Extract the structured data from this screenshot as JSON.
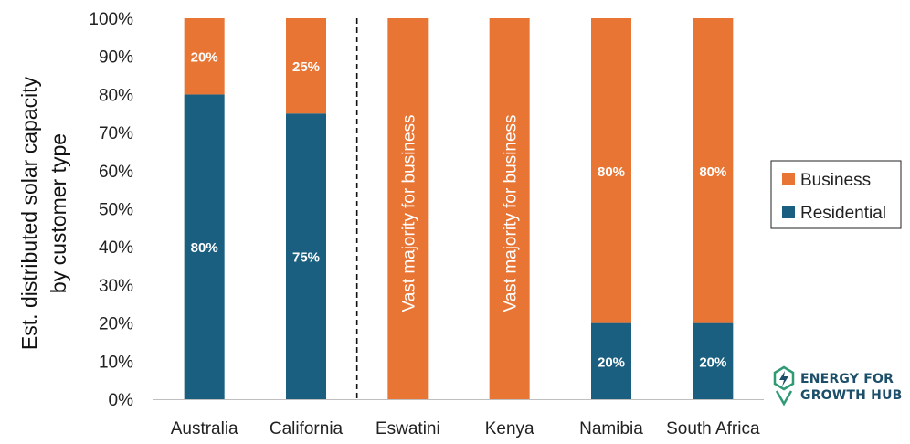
{
  "chart_data": {
    "type": "bar",
    "stacked": true,
    "ylabel_lines": [
      "Est. distributed solar capacity",
      "by customer type"
    ],
    "ylim": [
      0,
      100
    ],
    "yticks": [
      "0%",
      "10%",
      "20%",
      "30%",
      "40%",
      "50%",
      "60%",
      "70%",
      "80%",
      "90%",
      "100%"
    ],
    "categories": [
      "Australia",
      "California",
      "Eswatini",
      "Kenya",
      "Namibia",
      "South Africa"
    ],
    "series": [
      {
        "name": "Residential",
        "color": "#1a5f80",
        "values": [
          80,
          75,
          0,
          0,
          20,
          20
        ],
        "labels": [
          "80%",
          "75%",
          "",
          "",
          "20%",
          "20%"
        ]
      },
      {
        "name": "Business",
        "color": "#e87534",
        "values": [
          20,
          25,
          100,
          100,
          80,
          80
        ],
        "labels": [
          "20%",
          "25%",
          "",
          "",
          "80%",
          "80%"
        ]
      }
    ],
    "annotations": [
      {
        "category": "Eswatini",
        "text": "Vast majority for business"
      },
      {
        "category": "Kenya",
        "text": "Vast majority for business"
      }
    ],
    "divider_after_category": "California",
    "legend": {
      "placement": "right",
      "entries": [
        {
          "name": "Business",
          "color": "#e87534"
        },
        {
          "name": "Residential",
          "color": "#1a5f80"
        }
      ]
    },
    "grid": false
  },
  "logo": {
    "line1": "ENERGY FOR",
    "line2": "GROWTH HUB",
    "colors": [
      "#2f9a73",
      "#1d4f6a"
    ]
  }
}
